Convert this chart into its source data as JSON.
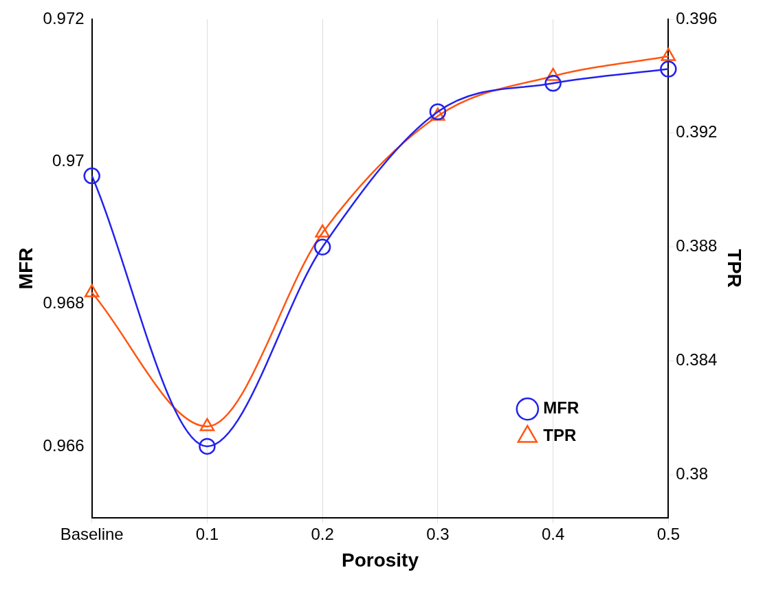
{
  "chart_data": {
    "type": "line",
    "xlabel": "Porosity",
    "ylabel": "MFR",
    "y2label": "TPR",
    "categories": [
      "Baseline",
      "0.1",
      "0.2",
      "0.3",
      "0.4",
      "0.5"
    ],
    "series": [
      {
        "name": "MFR",
        "color": "#2222ee",
        "marker": "circle",
        "values": [
          0.9698,
          0.966,
          0.9688,
          0.9707,
          0.9711,
          0.9713
        ]
      },
      {
        "name": "TPR",
        "color": "#ff5511",
        "marker": "triangle",
        "axis": "y2",
        "values": [
          0.3864,
          0.3817,
          0.3885,
          0.3926,
          0.394,
          0.3947
        ]
      }
    ],
    "ylim": [
      0.965,
      0.972
    ],
    "yticks": [
      0.966,
      0.968,
      0.97,
      0.972
    ],
    "y2lim": [
      0.3785,
      0.396
    ],
    "y2ticks": [
      0.38,
      0.384,
      0.388,
      0.392,
      0.396
    ],
    "grid": "x",
    "legend": "bottom right",
    "line_style": "solid"
  }
}
